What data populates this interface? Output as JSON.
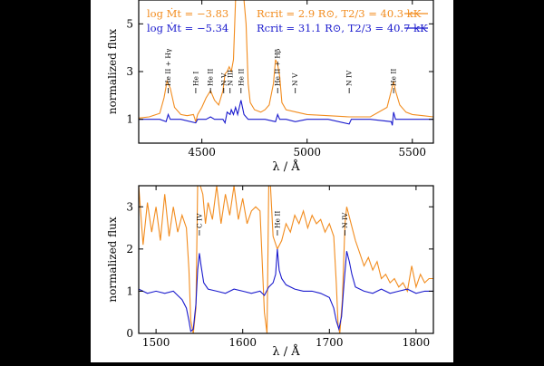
{
  "chart_data": [
    {
      "type": "line",
      "xlabel": "λ / Å",
      "ylabel": "normalized flux",
      "xlim": [
        4200,
        5600
      ],
      "ylim": [
        0,
        6
      ],
      "xticks": [
        4500,
        5000,
        5500
      ],
      "yticks": [
        1,
        3,
        5
      ],
      "grid": false,
      "legend": "top",
      "legend_entries": [
        {
          "label": "log Ṁt = −3.83",
          "params": "Rcrit = 2.9 R⊙, T2/3 = 40.3 kK",
          "color": "#f28c1e"
        },
        {
          "label": "log Ṁt = −5.34",
          "params": "Rcrit = 31.1 R⊙, T2/3 = 40.7 kK",
          "color": "#1a1acd"
        }
      ],
      "annotations": [
        {
          "x": 4340,
          "text": "He II + Hγ"
        },
        {
          "x": 4471,
          "text": "He I"
        },
        {
          "x": 4541,
          "text": "He II"
        },
        {
          "x": 4604,
          "text": "N V"
        },
        {
          "x": 4634,
          "text": "N III"
        },
        {
          "x": 4686,
          "text": "He II"
        },
        {
          "x": 4860,
          "text": "He II + Hβ"
        },
        {
          "x": 4944,
          "text": "N V"
        },
        {
          "x": 5200,
          "text": "N IV"
        },
        {
          "x": 5411,
          "text": "He II"
        }
      ],
      "series": [
        {
          "color": "#f28c1e",
          "x": [
            4200,
            4250,
            4300,
            4320,
            4335,
            4350,
            4370,
            4400,
            4430,
            4460,
            4471,
            4480,
            4500,
            4520,
            4541,
            4560,
            4580,
            4600,
            4610,
            4620,
            4630,
            4640,
            4650,
            4660,
            4670,
            4680,
            4690,
            4700,
            4710,
            4720,
            4730,
            4750,
            4780,
            4800,
            4820,
            4840,
            4850,
            4860,
            4870,
            4880,
            4900,
            4950,
            5000,
            5100,
            5200,
            5300,
            5380,
            5400,
            5411,
            5420,
            5440,
            5470,
            5500,
            5550,
            5600
          ],
          "y": [
            1.05,
            1.1,
            1.25,
            1.9,
            2.6,
            2.3,
            1.5,
            1.2,
            1.15,
            1.2,
            0.9,
            1.2,
            1.5,
            1.9,
            2.2,
            1.8,
            1.6,
            2.2,
            2.9,
            3.0,
            3.2,
            3.0,
            3.5,
            6.0,
            6.0,
            6.0,
            6.0,
            6.0,
            5.0,
            2.5,
            1.7,
            1.4,
            1.3,
            1.4,
            1.6,
            2.5,
            3.5,
            3.3,
            2.8,
            1.7,
            1.4,
            1.3,
            1.2,
            1.15,
            1.1,
            1.1,
            1.5,
            2.2,
            2.6,
            2.2,
            1.6,
            1.3,
            1.2,
            1.15,
            1.1
          ]
        },
        {
          "color": "#1a1acd",
          "x": [
            4200,
            4300,
            4330,
            4340,
            4350,
            4400,
            4471,
            4480,
            4520,
            4541,
            4560,
            4600,
            4610,
            4620,
            4634,
            4640,
            4650,
            4660,
            4670,
            4686,
            4700,
            4720,
            4800,
            4850,
            4860,
            4870,
            4900,
            4944,
            5000,
            5100,
            5200,
            5210,
            5300,
            5400,
            5405,
            5411,
            5420,
            5500,
            5600
          ],
          "y": [
            1.0,
            1.0,
            0.9,
            1.2,
            1.0,
            1.0,
            0.85,
            1.0,
            1.0,
            1.1,
            1.0,
            1.0,
            0.85,
            1.3,
            1.2,
            1.4,
            1.2,
            1.5,
            1.2,
            1.8,
            1.2,
            1.0,
            1.0,
            0.9,
            1.2,
            1.0,
            1.0,
            0.9,
            1.0,
            1.0,
            0.8,
            1.0,
            1.0,
            0.9,
            0.75,
            1.3,
            1.0,
            1.0,
            1.0
          ]
        }
      ]
    },
    {
      "type": "line",
      "xlabel": "λ / Å",
      "ylabel": "normalized flux",
      "xlim": [
        1480,
        1820
      ],
      "ylim": [
        0,
        3.5
      ],
      "xticks": [
        1500,
        1600,
        1700,
        1800
      ],
      "yticks": [
        0,
        1,
        2,
        3
      ],
      "grid": false,
      "annotations": [
        {
          "x": 1550,
          "text": "C IV"
        },
        {
          "x": 1640,
          "text": "He II"
        },
        {
          "x": 1718,
          "text": "N IV"
        }
      ],
      "series": [
        {
          "color": "#f28c1e",
          "x": [
            1480,
            1485,
            1490,
            1495,
            1500,
            1505,
            1510,
            1515,
            1520,
            1525,
            1530,
            1535,
            1538,
            1540,
            1543,
            1546,
            1548,
            1551,
            1554,
            1557,
            1560,
            1565,
            1570,
            1575,
            1580,
            1585,
            1590,
            1595,
            1600,
            1605,
            1610,
            1615,
            1620,
            1625,
            1628,
            1630,
            1632,
            1635,
            1640,
            1645,
            1650,
            1655,
            1660,
            1665,
            1670,
            1675,
            1680,
            1685,
            1690,
            1695,
            1700,
            1705,
            1708,
            1710,
            1712,
            1715,
            1718,
            1720,
            1725,
            1730,
            1735,
            1740,
            1745,
            1750,
            1755,
            1760,
            1765,
            1770,
            1775,
            1780,
            1785,
            1790,
            1795,
            1800,
            1805,
            1810,
            1815,
            1820
          ],
          "y": [
            3.5,
            2.1,
            3.1,
            2.4,
            3.0,
            2.2,
            3.3,
            2.3,
            3.0,
            2.4,
            2.8,
            2.5,
            1.5,
            0.3,
            0.0,
            0.6,
            3.5,
            3.5,
            3.3,
            2.6,
            3.1,
            2.7,
            3.5,
            2.6,
            3.3,
            2.8,
            3.5,
            2.7,
            3.2,
            2.6,
            2.9,
            3.0,
            2.9,
            0.5,
            0.0,
            3.5,
            3.5,
            2.3,
            2.0,
            2.2,
            2.6,
            2.4,
            2.8,
            2.6,
            2.9,
            2.5,
            2.8,
            2.6,
            2.7,
            2.4,
            2.6,
            2.3,
            1.2,
            0.2,
            0.0,
            0.8,
            2.6,
            3.0,
            2.6,
            2.2,
            1.9,
            1.6,
            1.8,
            1.5,
            1.7,
            1.3,
            1.4,
            1.2,
            1.3,
            1.1,
            1.2,
            1.0,
            1.6,
            1.1,
            1.4,
            1.2,
            1.3,
            1.3
          ]
        },
        {
          "color": "#1a1acd",
          "x": [
            1480,
            1490,
            1500,
            1510,
            1520,
            1525,
            1530,
            1535,
            1538,
            1540,
            1543,
            1546,
            1548,
            1550,
            1552,
            1555,
            1560,
            1570,
            1580,
            1590,
            1600,
            1610,
            1620,
            1625,
            1630,
            1635,
            1638,
            1640,
            1642,
            1645,
            1650,
            1660,
            1670,
            1680,
            1690,
            1700,
            1705,
            1708,
            1711,
            1714,
            1717,
            1720,
            1723,
            1726,
            1730,
            1740,
            1750,
            1760,
            1770,
            1780,
            1790,
            1800,
            1810,
            1820
          ],
          "y": [
            1.05,
            0.95,
            1.0,
            0.95,
            1.0,
            0.9,
            0.8,
            0.6,
            0.3,
            0.05,
            0.1,
            0.7,
            1.5,
            1.9,
            1.6,
            1.2,
            1.05,
            1.0,
            0.95,
            1.05,
            1.0,
            0.95,
            1.0,
            0.9,
            1.1,
            1.2,
            1.4,
            2.0,
            1.5,
            1.3,
            1.15,
            1.05,
            1.0,
            1.0,
            0.95,
            0.85,
            0.6,
            0.3,
            0.1,
            0.4,
            1.2,
            1.95,
            1.7,
            1.4,
            1.1,
            1.0,
            0.95,
            1.05,
            0.95,
            1.0,
            1.05,
            0.95,
            1.0,
            1.0
          ]
        }
      ]
    }
  ]
}
